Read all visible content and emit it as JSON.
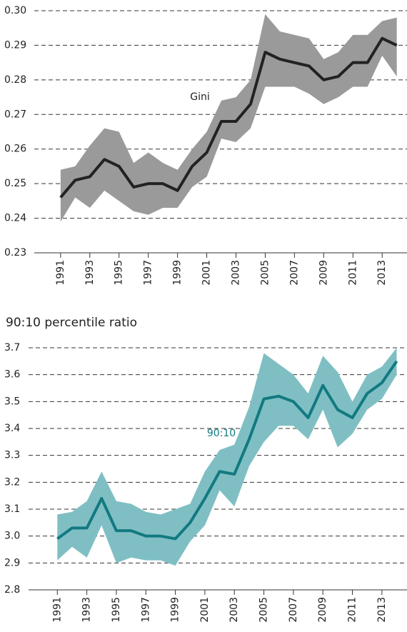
{
  "chart_data": [
    {
      "type": "line",
      "annotation": "Gini",
      "x": [
        1991,
        1992,
        1993,
        1994,
        1995,
        1996,
        1997,
        1998,
        1999,
        2000,
        2001,
        2002,
        2003,
        2004,
        2005,
        2006,
        2007,
        2008,
        2009,
        2010,
        2011,
        2012,
        2013,
        2014
      ],
      "series": [
        {
          "color": "#222222",
          "values": [
            0.246,
            0.251,
            0.252,
            0.257,
            0.255,
            0.249,
            0.25,
            0.25,
            0.248,
            0.255,
            0.259,
            0.268,
            0.268,
            0.273,
            0.288,
            0.286,
            0.285,
            0.284,
            0.28,
            0.281,
            0.285,
            0.285,
            0.292,
            0.29
          ]
        }
      ],
      "band": {
        "color": "#9a9a9a",
        "upper": [
          0.254,
          0.255,
          0.261,
          0.266,
          0.265,
          0.256,
          0.259,
          0.256,
          0.254,
          0.26,
          0.265,
          0.274,
          0.275,
          0.28,
          0.299,
          0.294,
          0.293,
          0.292,
          0.286,
          0.288,
          0.293,
          0.293,
          0.297,
          0.298
        ],
        "lower": [
          0.239,
          0.246,
          0.243,
          0.248,
          0.245,
          0.242,
          0.241,
          0.243,
          0.243,
          0.249,
          0.252,
          0.263,
          0.262,
          0.266,
          0.278,
          0.278,
          0.278,
          0.276,
          0.273,
          0.275,
          0.278,
          0.278,
          0.287,
          0.281
        ]
      },
      "xlim": [
        1989.2,
        2014.7
      ],
      "xticks": [
        1991,
        1993,
        1995,
        1997,
        1999,
        2001,
        2003,
        2005,
        2007,
        2009,
        2011,
        2013
      ],
      "ylim": [
        0.23,
        0.3
      ],
      "yticks": [
        0.23,
        0.24,
        0.25,
        0.26,
        0.27,
        0.28,
        0.29,
        {
          "value": 0.3,
          "label": "0.30"
        }
      ],
      "grid": true
    },
    {
      "type": "line",
      "subtitle": "90:10 percentile ratio",
      "annotation": "90:10",
      "x": [
        1991,
        1992,
        1993,
        1994,
        1995,
        1996,
        1997,
        1998,
        1999,
        2000,
        2001,
        2002,
        2003,
        2004,
        2005,
        2006,
        2007,
        2008,
        2009,
        2010,
        2011,
        2012,
        2013,
        2014
      ],
      "series": [
        {
          "color": "#127a80",
          "values": [
            2.99,
            3.03,
            3.03,
            3.14,
            3.02,
            3.02,
            3.0,
            3.0,
            2.99,
            3.05,
            3.14,
            3.24,
            3.23,
            3.36,
            3.51,
            3.52,
            3.5,
            3.44,
            3.56,
            3.47,
            3.44,
            3.53,
            3.57,
            3.65
          ]
        }
      ],
      "band": {
        "color": "#7fbfc4",
        "upper": [
          3.08,
          3.09,
          3.13,
          3.24,
          3.13,
          3.12,
          3.09,
          3.08,
          3.1,
          3.12,
          3.24,
          3.32,
          3.34,
          3.48,
          3.68,
          3.64,
          3.6,
          3.53,
          3.67,
          3.61,
          3.5,
          3.6,
          3.63,
          3.7
        ],
        "lower": [
          2.91,
          2.96,
          2.92,
          3.04,
          2.9,
          2.92,
          2.91,
          2.91,
          2.89,
          2.98,
          3.04,
          3.17,
          3.11,
          3.26,
          3.35,
          3.41,
          3.41,
          3.36,
          3.47,
          3.33,
          3.38,
          3.47,
          3.51,
          3.6
        ]
      },
      "xlim": [
        1989.05,
        2014.7
      ],
      "xticks": [
        1991,
        1993,
        1995,
        1997,
        1999,
        2001,
        2003,
        2005,
        2007,
        2009,
        2011,
        2013
      ],
      "ylim": [
        2.8,
        3.7
      ],
      "yticks": [
        2.8,
        2.9,
        {
          "value": 3,
          "label": "3.0"
        },
        3.1,
        3.2,
        3.3,
        3.4,
        3.5,
        3.6,
        3.7
      ],
      "grid": true
    }
  ]
}
